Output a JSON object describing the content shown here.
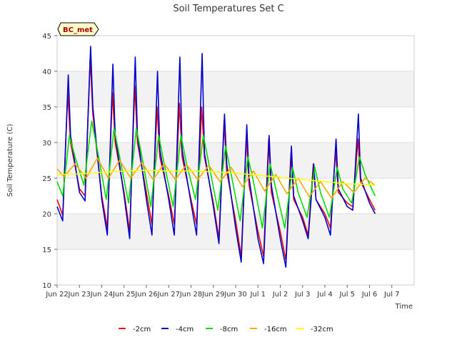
{
  "chart_data": {
    "type": "line",
    "title": "Soil Temperatures Set C",
    "xlabel": "Time",
    "ylabel": "Soil Temperature (C)",
    "badge": "BC_met",
    "ylim": [
      10,
      45
    ],
    "yticks": [
      10,
      15,
      20,
      25,
      30,
      35,
      40,
      45
    ],
    "xlim": [
      0,
      16
    ],
    "xticks": [
      {
        "x": 0,
        "label": "Jun 22"
      },
      {
        "x": 1,
        "label": "Jun 23"
      },
      {
        "x": 2,
        "label": "Jun 24"
      },
      {
        "x": 3,
        "label": "Jun 25"
      },
      {
        "x": 4,
        "label": "Jun 26"
      },
      {
        "x": 5,
        "label": "Jun 27"
      },
      {
        "x": 6,
        "label": "Jun 28"
      },
      {
        "x": 7,
        "label": "Jun 29"
      },
      {
        "x": 8,
        "label": "Jun 30"
      },
      {
        "x": 9,
        "label": "Jul 1"
      },
      {
        "x": 10,
        "label": "Jul 2"
      },
      {
        "x": 11,
        "label": "Jul 3"
      },
      {
        "x": 12,
        "label": "Jul 4"
      },
      {
        "x": 13,
        "label": "Jul 5"
      },
      {
        "x": 14,
        "label": "Jul 6"
      },
      {
        "x": 15,
        "label": "Jul 7"
      }
    ],
    "grid": true,
    "legend_position": "bottom",
    "series": [
      {
        "name": "-2cm",
        "color": "#ee0000",
        "x": [
          0.0,
          0.25,
          0.48,
          0.6,
          1.0,
          1.25,
          1.48,
          1.6,
          2.0,
          2.25,
          2.48,
          2.6,
          3.0,
          3.25,
          3.48,
          3.6,
          4.0,
          4.25,
          4.48,
          4.6,
          5.0,
          5.25,
          5.48,
          5.6,
          6.0,
          6.25,
          6.48,
          6.6,
          7.0,
          7.25,
          7.48,
          7.6,
          8.0,
          8.25,
          8.48,
          8.6,
          9.0,
          9.25,
          9.48,
          9.6,
          10.0,
          10.25,
          10.48,
          10.6,
          11.0,
          11.25,
          11.48,
          11.6,
          12.0,
          12.25,
          12.48,
          12.6,
          13.0,
          13.25,
          13.48,
          13.6,
          14.0,
          14.25
        ],
        "y": [
          22.0,
          19.8,
          37.0,
          30.0,
          23.5,
          22.5,
          42.0,
          34.0,
          22.5,
          18.0,
          37.0,
          30.0,
          23.0,
          17.5,
          38.0,
          30.0,
          23.0,
          18.5,
          35.0,
          28.0,
          22.5,
          18.5,
          35.5,
          28.0,
          22.0,
          18.5,
          35.0,
          28.0,
          21.5,
          16.5,
          33.0,
          26.0,
          19.0,
          14.0,
          31.0,
          24.0,
          17.5,
          14.0,
          30.5,
          23.0,
          17.5,
          13.5,
          28.5,
          22.0,
          19.5,
          17.0,
          27.0,
          22.0,
          20.0,
          18.0,
          29.0,
          23.0,
          21.5,
          21.0,
          30.5,
          24.5,
          22.0,
          20.5
        ]
      },
      {
        "name": "-4cm",
        "color": "#0000cc",
        "x": [
          0.0,
          0.25,
          0.5,
          0.6,
          1.0,
          1.25,
          1.5,
          1.6,
          2.0,
          2.25,
          2.5,
          2.6,
          3.0,
          3.25,
          3.5,
          3.6,
          4.0,
          4.25,
          4.5,
          4.6,
          5.0,
          5.25,
          5.5,
          5.6,
          6.0,
          6.25,
          6.5,
          6.6,
          7.0,
          7.25,
          7.5,
          7.6,
          8.0,
          8.25,
          8.5,
          8.6,
          9.0,
          9.25,
          9.5,
          9.6,
          10.0,
          10.25,
          10.5,
          10.6,
          11.0,
          11.25,
          11.5,
          11.6,
          12.0,
          12.25,
          12.5,
          12.6,
          13.0,
          13.25,
          13.5,
          13.6,
          14.0,
          14.25
        ],
        "y": [
          21.0,
          19.0,
          39.5,
          31.0,
          23.0,
          21.8,
          43.5,
          35.0,
          22.0,
          17.0,
          41.0,
          31.0,
          22.5,
          16.5,
          42.0,
          31.0,
          22.0,
          17.0,
          40.0,
          29.0,
          22.0,
          17.0,
          42.0,
          29.0,
          21.5,
          17.0,
          42.5,
          28.5,
          21.0,
          15.8,
          34.0,
          27.0,
          18.0,
          13.2,
          32.5,
          25.0,
          16.5,
          13.0,
          31.0,
          24.0,
          16.5,
          12.5,
          29.5,
          22.5,
          19.0,
          16.5,
          27.0,
          22.0,
          19.5,
          17.0,
          30.5,
          23.5,
          21.0,
          20.5,
          34.0,
          25.0,
          21.5,
          20.0
        ]
      },
      {
        "name": "-8cm",
        "color": "#00dd00",
        "x": [
          0.0,
          0.25,
          0.55,
          0.8,
          1.2,
          1.55,
          1.8,
          2.2,
          2.55,
          2.8,
          3.2,
          3.55,
          3.8,
          4.2,
          4.55,
          4.8,
          5.2,
          5.55,
          5.8,
          6.2,
          6.55,
          6.8,
          7.2,
          7.55,
          7.8,
          8.2,
          8.55,
          8.8,
          9.2,
          9.55,
          9.8,
          10.2,
          10.55,
          10.8,
          11.2,
          11.55,
          11.8,
          12.2,
          12.55,
          12.8,
          13.2,
          13.55,
          13.8,
          14.25
        ],
        "y": [
          24.5,
          22.5,
          31.0,
          28.0,
          24.0,
          33.0,
          29.0,
          22.0,
          32.0,
          28.0,
          21.5,
          32.0,
          28.0,
          21.0,
          31.0,
          27.0,
          21.0,
          31.0,
          27.0,
          22.0,
          31.0,
          27.0,
          20.5,
          29.5,
          25.5,
          19.0,
          28.0,
          24.5,
          18.0,
          27.0,
          23.5,
          18.0,
          26.5,
          23.0,
          19.5,
          26.5,
          23.0,
          19.5,
          26.5,
          23.5,
          21.5,
          28.0,
          25.5,
          22.5
        ]
      },
      {
        "name": "-16cm",
        "color": "#ffa500",
        "x": [
          0.0,
          0.3,
          0.8,
          1.3,
          1.8,
          2.3,
          2.8,
          3.3,
          3.8,
          4.3,
          4.8,
          5.3,
          5.8,
          6.3,
          6.8,
          7.3,
          7.8,
          8.3,
          8.8,
          9.3,
          9.8,
          10.3,
          10.8,
          11.3,
          11.8,
          12.3,
          12.8,
          13.3,
          13.8,
          14.25
        ],
        "y": [
          26.3,
          25.2,
          27.0,
          25.0,
          27.8,
          25.0,
          27.5,
          25.0,
          27.2,
          24.8,
          27.0,
          24.8,
          26.9,
          24.8,
          26.8,
          24.5,
          26.5,
          23.8,
          26.0,
          23.2,
          25.5,
          22.8,
          25.0,
          22.4,
          24.5,
          22.2,
          24.5,
          23.0,
          25.0,
          24.0
        ]
      },
      {
        "name": "-32cm",
        "color": "#ffff00",
        "x": [
          0.0,
          1.0,
          2.0,
          3.0,
          4.0,
          5.0,
          6.0,
          7.0,
          8.0,
          9.0,
          10.0,
          11.0,
          12.0,
          13.0,
          14.0,
          14.25
        ],
        "y": [
          25.5,
          25.6,
          25.8,
          26.0,
          26.1,
          26.0,
          26.0,
          25.9,
          25.7,
          25.4,
          25.1,
          24.8,
          24.5,
          24.2,
          24.1,
          24.0
        ]
      }
    ]
  }
}
